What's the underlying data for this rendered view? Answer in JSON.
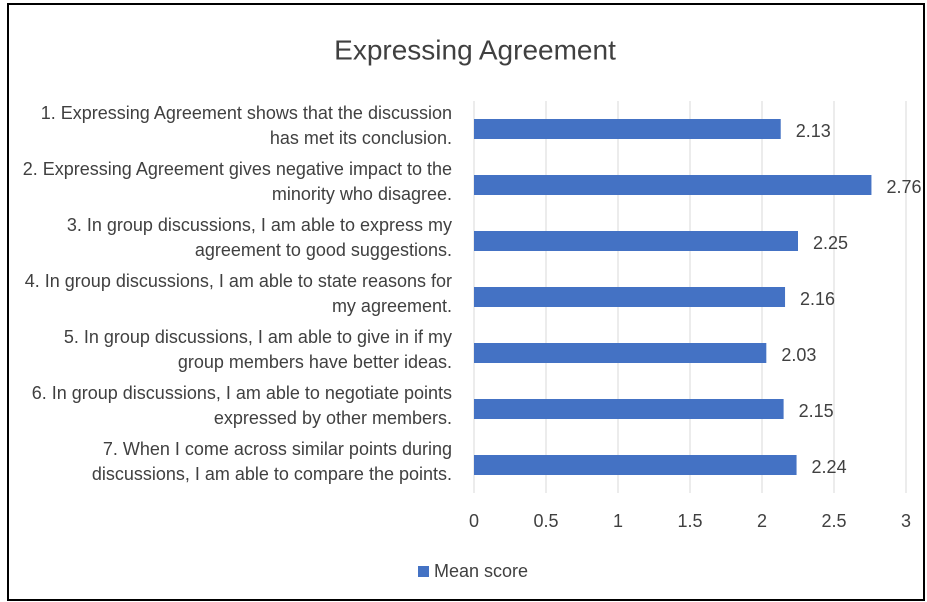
{
  "chart_data": {
    "type": "bar",
    "orientation": "horizontal",
    "title": "Expressing Agreement",
    "categories": [
      "1. Expressing Agreement shows that the discussion has met its conclusion.",
      "2. Expressing Agreement gives negative impact to the minority who disagree.",
      "3. In group discussions, I am able to express my agreement to good suggestions.",
      "4. In group discussions, I am able to state reasons for my agreement.",
      "5. In group discussions, I am able to give in if my group members have better ideas.",
      "6. In group discussions, I am able to negotiate points expressed by other members.",
      "7. When I come across similar points during discussions, I am able to compare the points."
    ],
    "series": [
      {
        "name": "Mean score",
        "color": "#4472c4",
        "values": [
          2.13,
          2.76,
          2.25,
          2.16,
          2.03,
          2.15,
          2.24
        ]
      }
    ],
    "xlim": [
      0,
      3
    ],
    "xticks": [
      0,
      0.5,
      1,
      1.5,
      2,
      2.5,
      3
    ],
    "grid": true,
    "legend": "bottom"
  }
}
